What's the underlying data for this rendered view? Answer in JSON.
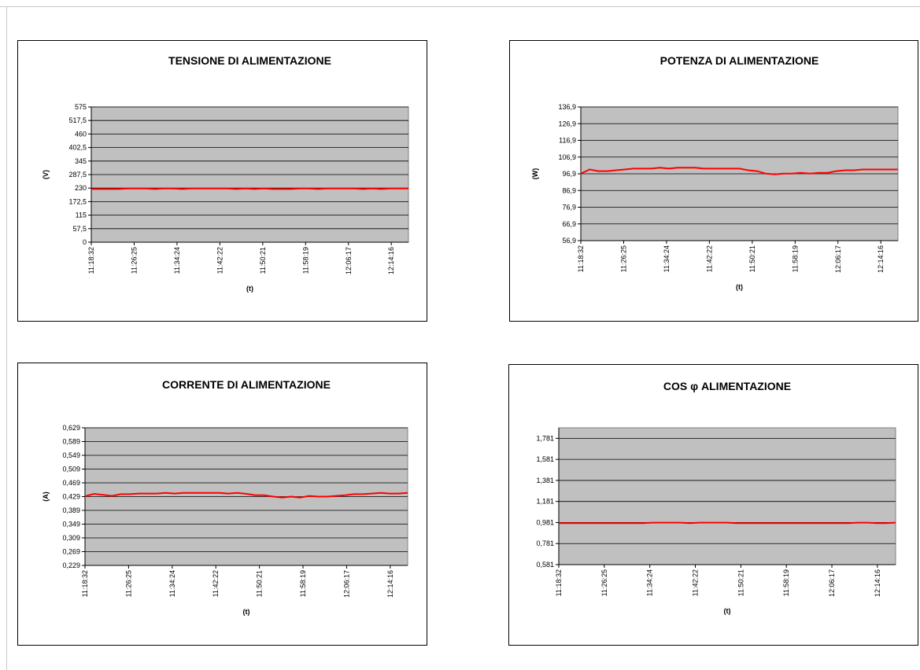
{
  "colors": {
    "plot_bg": "#c0c0c0",
    "line": "#ff0000",
    "grid": "#000000"
  },
  "chart_data": [
    {
      "type": "line",
      "title": "TENSIONE DI ALIMENTAZIONE",
      "xlabel": "(t)",
      "ylabel": "(V)",
      "ylim": [
        0,
        575
      ],
      "yticks": [
        "575",
        "517,5",
        "460",
        "402,5",
        "345",
        "287,5",
        "230",
        "172,5",
        "115",
        "57,5",
        "0"
      ],
      "xticks": [
        "11:18:32",
        "11:26:25",
        "11:34:24",
        "11:42:22",
        "11:50:21",
        "11:58:19",
        "12:06:17",
        "12:14:16"
      ],
      "grid": true,
      "series": [
        {
          "values": [
            226,
            226,
            226,
            226,
            228,
            228,
            228,
            226,
            228,
            228,
            226,
            228,
            228,
            228,
            228,
            228,
            226,
            228,
            226,
            228,
            226,
            226,
            226,
            228,
            228,
            226,
            228,
            228,
            228,
            228,
            226,
            228,
            226,
            228,
            228,
            228
          ]
        }
      ]
    },
    {
      "type": "line",
      "title": "POTENZA DI ALIMENTAZIONE",
      "xlabel": "(t)",
      "ylabel": "(W)",
      "ylim": [
        56.9,
        136.9
      ],
      "yticks": [
        "136,9",
        "126,9",
        "116,9",
        "106,9",
        "96,9",
        "86,9",
        "76,9",
        "66,9",
        "56,9"
      ],
      "xticks": [
        "11:18:32",
        "11:26:25",
        "11:34:24",
        "11:42:22",
        "11:50:21",
        "11:58:19",
        "12:06:17",
        "12:14:16"
      ],
      "grid": true,
      "series": [
        {
          "values": [
            97,
            99.5,
            98.5,
            98.5,
            99,
            99.5,
            100,
            100,
            100,
            100.5,
            100,
            100.5,
            100.5,
            100.5,
            100,
            100,
            100,
            100,
            100,
            99,
            98.5,
            97,
            96.5,
            97,
            97,
            97.5,
            97,
            97.5,
            97.5,
            98.5,
            99,
            99,
            99.5,
            99.5,
            99.5,
            99.5,
            99.5
          ]
        }
      ]
    },
    {
      "type": "line",
      "title": "CORRENTE DI ALIMENTAZIONE",
      "xlabel": "(t)",
      "ylabel": "(A)",
      "ylim": [
        0.229,
        0.629
      ],
      "yticks": [
        "0,629",
        "0,589",
        "0,549",
        "0,509",
        "0,469",
        "0,429",
        "0,389",
        "0,349",
        "0,309",
        "0,269",
        "0,229"
      ],
      "xticks": [
        "11:18:32",
        "11:26:25",
        "11:34:24",
        "11:42:22",
        "11:50:21",
        "11:58:19",
        "12:06:17",
        "12:14:16"
      ],
      "grid": true,
      "series": [
        {
          "values": [
            0.43,
            0.437,
            0.434,
            0.431,
            0.436,
            0.436,
            0.438,
            0.438,
            0.438,
            0.44,
            0.438,
            0.44,
            0.44,
            0.44,
            0.44,
            0.44,
            0.438,
            0.44,
            0.437,
            0.433,
            0.433,
            0.429,
            0.426,
            0.429,
            0.426,
            0.431,
            0.429,
            0.429,
            0.431,
            0.433,
            0.436,
            0.436,
            0.438,
            0.44,
            0.438,
            0.438,
            0.44
          ]
        }
      ]
    },
    {
      "type": "line",
      "title": "COS φ ALIMENTAZIONE",
      "xlabel": "(t)",
      "ylabel": "",
      "ylim": [
        0.581,
        1.881
      ],
      "yticks": [
        "1,781",
        "1,581",
        "1,381",
        "1,181",
        "0,981",
        "0,781",
        "0,581"
      ],
      "xticks": [
        "11:18:32",
        "11:26:25",
        "11:34:24",
        "11:42:22",
        "11:50:21",
        "11:58:19",
        "12:06:17",
        "12:14:16"
      ],
      "grid": true,
      "series": [
        {
          "values": [
            0.975,
            0.975,
            0.975,
            0.975,
            0.975,
            0.975,
            0.975,
            0.975,
            0.975,
            0.975,
            0.98,
            0.98,
            0.98,
            0.98,
            0.975,
            0.98,
            0.98,
            0.98,
            0.98,
            0.975,
            0.975,
            0.975,
            0.975,
            0.975,
            0.975,
            0.975,
            0.975,
            0.975,
            0.975,
            0.975,
            0.975,
            0.975,
            0.98,
            0.98,
            0.975,
            0.975,
            0.98
          ]
        }
      ]
    }
  ]
}
